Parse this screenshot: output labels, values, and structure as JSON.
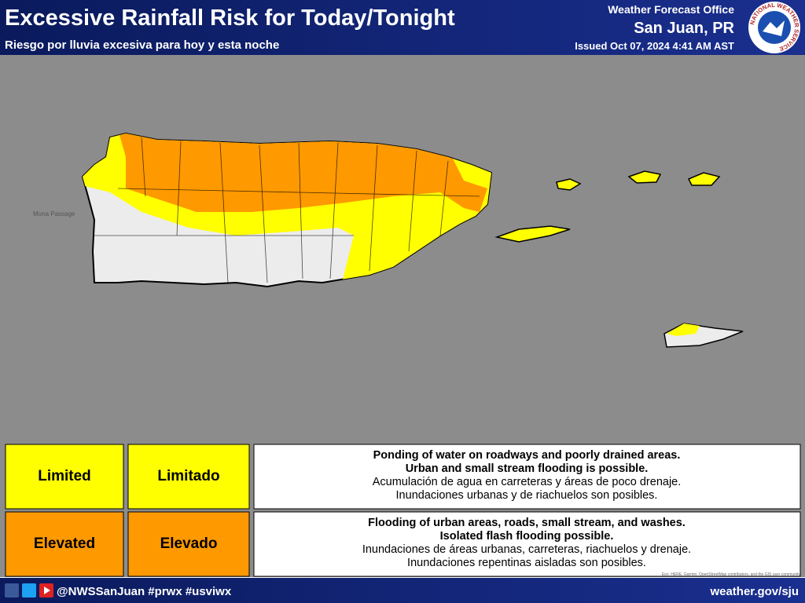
{
  "header": {
    "title": "Excessive Rainfall Risk for Today/Tonight",
    "subtitle": "Riesgo por lluvia excesiva para hoy y esta noche",
    "office": "Weather Forecast Office",
    "location": "San Juan, PR",
    "issued": "Issued Oct 07, 2024 4:41 AM AST",
    "logo_text": "NATIONAL WEATHER SERVICE"
  },
  "map": {
    "label": "Mona Passage",
    "attribution": "Esri, HERE, Garmin, OpenStreetMap contributors, and the GIS user community"
  },
  "legend": {
    "rows": [
      {
        "en": "Limited",
        "es": "Limitado",
        "color": "#ffff00",
        "bold_lines": [
          "Ponding of water on roadways and poorly drained areas.",
          "Urban and small stream flooding is possible."
        ],
        "lines": [
          "Acumulación de agua en carreteras y áreas de poco drenaje.",
          "Inundaciones urbanas y de riachuelos son posibles."
        ]
      },
      {
        "en": "Elevated",
        "es": "Elevado",
        "color": "#ff9900",
        "bold_lines": [
          "Flooding of urban areas, roads, small stream, and washes.",
          "Isolated flash flooding possible."
        ],
        "lines": [
          "Inundaciones de áreas urbanas, carreteras, riachuelos y drenaje.",
          "Inundaciones repentinas aisladas son posibles."
        ]
      }
    ]
  },
  "footer": {
    "handle": "@NWSSanJuan #prwx #usviwx",
    "website": "weather.gov/sju"
  }
}
